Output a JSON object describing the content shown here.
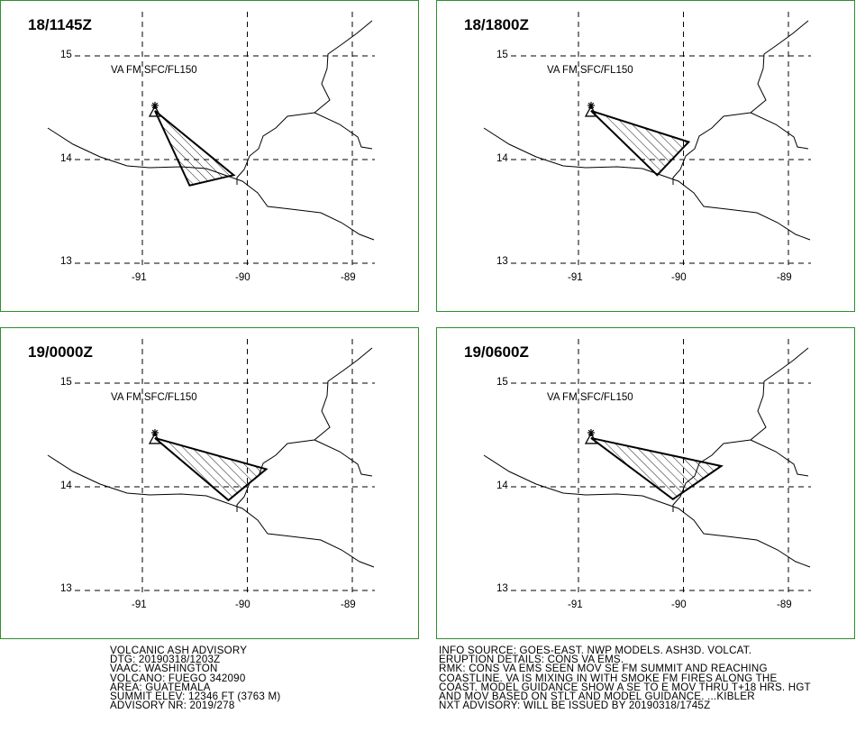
{
  "panels": [
    {
      "time": "18/1145Z",
      "level": "VA FM SFC/FL150",
      "ash_polygon": [
        [
          -90.88,
          14.47
        ],
        [
          -90.13,
          13.85
        ],
        [
          -90.55,
          13.75
        ]
      ]
    },
    {
      "time": "18/1800Z",
      "level": "VA FM SFC/FL150",
      "ash_polygon": [
        [
          -90.88,
          14.47
        ],
        [
          -89.95,
          14.17
        ],
        [
          -90.25,
          13.85
        ]
      ]
    },
    {
      "time": "19/0000Z",
      "level": "VA FM SFC/FL150",
      "ash_polygon": [
        [
          -90.88,
          14.47
        ],
        [
          -89.82,
          14.17
        ],
        [
          -90.18,
          13.87
        ]
      ]
    },
    {
      "time": "19/0600Z",
      "level": "VA FM SFC/FL150",
      "ash_polygon": [
        [
          -90.88,
          14.47
        ],
        [
          -89.64,
          14.2
        ],
        [
          -90.1,
          13.88
        ]
      ]
    }
  ],
  "axes": {
    "lat_labels": [
      "15",
      "14",
      "13"
    ],
    "lon_labels": [
      "-91",
      "-90",
      "-89"
    ]
  },
  "volcano": {
    "lon": -90.88,
    "lat": 14.47
  },
  "advisory_left": [
    "VOLCANIC ASH ADVISORY",
    "DTG: 20190318/1203Z",
    "VAAC: WASHINGTON",
    "VOLCANO: FUEGO 342090",
    "AREA: GUATEMALA",
    "SUMMIT ELEV: 12346 FT (3763 M)",
    "ADVISORY NR: 2019/278"
  ],
  "advisory_right": [
    "INFO SOURCE: GOES-EAST. NWP MODELS. ASH3D. VOLCAT.",
    "ERUPTION DETAILS: CONS VA EMS.",
    "RMK: CONS VA EMS SEEN MOV SE FM SUMMIT AND REACHING",
    "COASTLINE. VA IS MIXING IN WITH SMOKE FM FIRES ALONG THE",
    "COAST. MODEL GUIDANCE SHOW A SE TO E MOV THRU T+18 HRS. HGT",
    "AND MOV BASED ON STLT AND MODEL GUIDANCE. ...KIBLER",
    "NXT ADVISORY: WILL BE ISSUED BY 20190318/1745Z"
  ],
  "colors": {
    "border": "#2f8f2f",
    "line": "#000000"
  }
}
